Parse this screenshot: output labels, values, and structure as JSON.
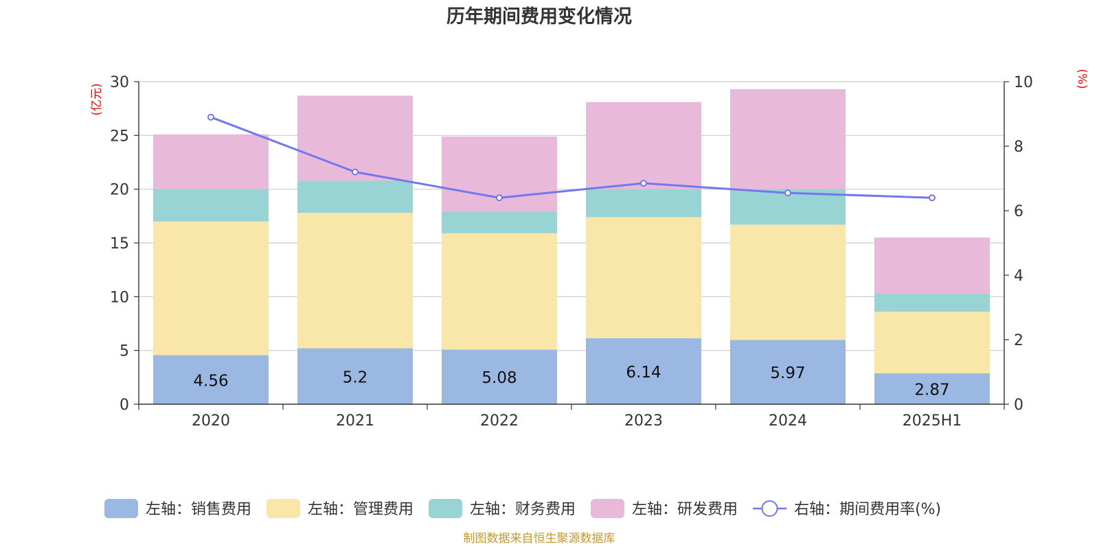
{
  "chart_data": {
    "type": "bar",
    "stacked": true,
    "title": "历年期间费用变化情况",
    "categories": [
      "2020",
      "2021",
      "2022",
      "2023",
      "2024",
      "2025H1"
    ],
    "left_axis": {
      "unit": "(亿元)",
      "ylim": [
        0,
        30
      ],
      "ticks": [
        "0",
        "5",
        "10",
        "15",
        "20",
        "25",
        "30"
      ]
    },
    "right_axis": {
      "unit": "(%)",
      "ylim": [
        0,
        10
      ],
      "ticks": [
        "0",
        "2",
        "4",
        "6",
        "8",
        "10"
      ]
    },
    "series": [
      {
        "name": "左轴：销售费用",
        "color": "#9bb8e3",
        "values": [
          4.56,
          5.2,
          5.08,
          6.14,
          5.97,
          2.87
        ],
        "labels": [
          "4.56",
          "5.2",
          "5.08",
          "6.14",
          "5.97",
          "2.87"
        ]
      },
      {
        "name": "左轴：管理费用",
        "color": "#f8e7a8",
        "values": [
          12.44,
          12.6,
          10.82,
          11.26,
          10.73,
          5.73
        ]
      },
      {
        "name": "左轴：财务费用",
        "color": "#98d4d4",
        "values": [
          3.0,
          3.0,
          2.0,
          2.6,
          3.3,
          1.7
        ]
      },
      {
        "name": "左轴：研发费用",
        "color": "#e8b9d9",
        "values": [
          5.1,
          7.9,
          7.0,
          8.1,
          9.3,
          5.2
        ]
      }
    ],
    "line_series": {
      "name": "右轴：期间费用率(%)",
      "color": "#7277f0",
      "values": [
        8.9,
        7.2,
        6.4,
        6.85,
        6.55,
        6.4
      ]
    },
    "grid": true,
    "legend_position": "bottom"
  },
  "source": "制图数据来自恒生聚源数据库"
}
